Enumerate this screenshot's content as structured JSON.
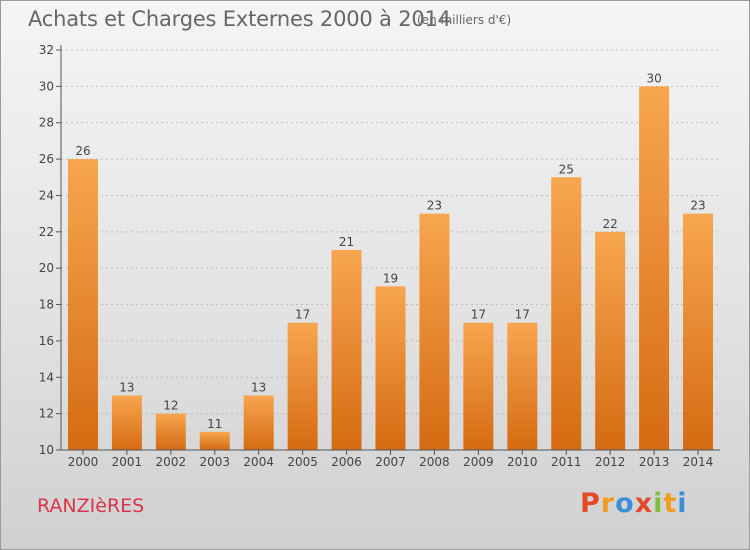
{
  "header": {
    "title": "Achats et Charges Externes 2000 à 2014",
    "subtitle": "(en milliers d'€)"
  },
  "footer": {
    "commune": "RANZIèRES",
    "logo_text": "Proxiti",
    "logo_colors": [
      "#e24a2a",
      "#f29a1f",
      "#3b8fd6",
      "#e24a2a",
      "#7fbf3a",
      "#f29a1f",
      "#3b8fd6"
    ]
  },
  "colors": {
    "bar_light": "#f7a64f",
    "bar_dark": "#d56b12",
    "axis": "#555555",
    "grid": "#bdbdbd",
    "commune": "#d9344a"
  },
  "chart_data": {
    "type": "bar",
    "categories": [
      "2000",
      "2001",
      "2002",
      "2003",
      "2004",
      "2005",
      "2006",
      "2007",
      "2008",
      "2009",
      "2010",
      "2011",
      "2012",
      "2013",
      "2014"
    ],
    "values": [
      26,
      13,
      12,
      11,
      13,
      17,
      21,
      19,
      23,
      17,
      17,
      25,
      22,
      30,
      23
    ],
    "title": "Achats et Charges Externes 2000 à 2014",
    "subtitle": "(en milliers d'€)",
    "xlabel": "",
    "ylabel": "",
    "ylim": [
      10,
      32
    ],
    "yticks": [
      10,
      12,
      14,
      16,
      18,
      20,
      22,
      24,
      26,
      28,
      30,
      32
    ],
    "grid": true,
    "data_labels": true
  }
}
